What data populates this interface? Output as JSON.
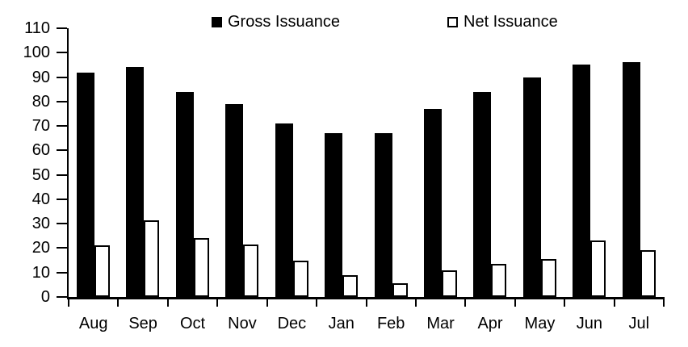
{
  "chart_data": {
    "type": "bar",
    "title": "",
    "xlabel": "",
    "ylabel": "",
    "categories": [
      "Aug",
      "Sep",
      "Oct",
      "Nov",
      "Dec",
      "Jan",
      "Feb",
      "Mar",
      "Apr",
      "May",
      "Jun",
      "Jul"
    ],
    "series": [
      {
        "name": "Gross Issuance",
        "fill": "#000000",
        "style": "filled",
        "values": [
          92,
          94,
          84,
          79,
          71,
          67,
          67,
          77,
          84,
          90,
          95,
          96
        ]
      },
      {
        "name": "Net Issuance",
        "fill": "#ffffff",
        "style": "outlined",
        "values": [
          21,
          31.5,
          24,
          21.5,
          15,
          9,
          5.5,
          11,
          13.5,
          15.5,
          23,
          19
        ]
      }
    ],
    "ylim": [
      0,
      110
    ],
    "ytick_step": 10,
    "ytick_labels": [
      "0",
      "10",
      "20",
      "30",
      "40",
      "50",
      "60",
      "70",
      "80",
      "90",
      "100",
      "110"
    ],
    "grid": false,
    "legend_position": "top"
  },
  "colors": {
    "bar_fill_black": "#000000",
    "bar_fill_white": "#ffffff",
    "axis": "#000000",
    "background": "#ffffff",
    "text": "#000000"
  }
}
